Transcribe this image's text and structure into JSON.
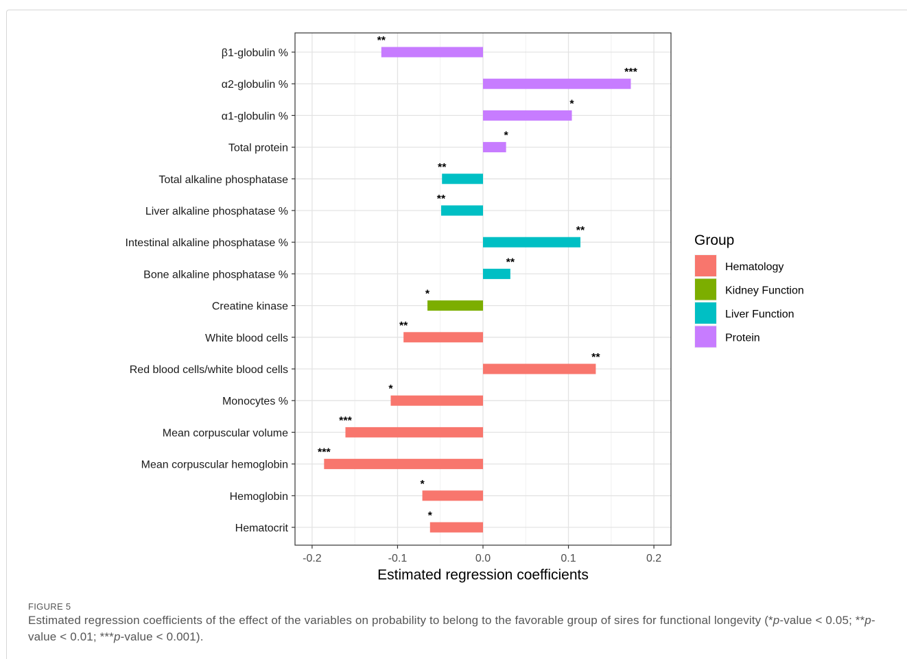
{
  "figure": {
    "label": "FIGURE 5",
    "caption_parts": [
      "Estimated regression coefficients of the effect of the variables on probability to belong to the favorable group of sires for functional longevity (*",
      "p",
      "-value < 0.05; **",
      "p",
      "-value < 0.01; ***",
      "p",
      "-value < 0.001)."
    ]
  },
  "chart_data": {
    "type": "bar",
    "orientation": "horizontal",
    "xlabel": "Estimated regression coefficients",
    "ylabel": "",
    "xlim": [
      -0.22,
      0.22
    ],
    "x_ticks": [
      -0.2,
      -0.1,
      0.0,
      0.1,
      0.2
    ],
    "x_tick_labels": [
      "-0.2",
      "-0.1",
      "0.0",
      "0.1",
      "0.2"
    ],
    "grid": true,
    "legend": {
      "title": "Group",
      "position": "right",
      "entries": [
        {
          "name": "Hematology",
          "color": "#F8766D"
        },
        {
          "name": "Kidney Function",
          "color": "#7CAE00"
        },
        {
          "name": "Liver Function",
          "color": "#00BFC4"
        },
        {
          "name": "Protein",
          "color": "#C77CFF"
        }
      ]
    },
    "categories": [
      "β1-globulin %",
      "α2-globulin %",
      "α1-globulin %",
      "Total protein",
      "Total alkaline phosphatase",
      "Liver alkaline phosphatase %",
      "Intestinal alkaline phosphatase %",
      "Bone alkaline phosphatase %",
      "Creatine kinase",
      "White blood cells",
      "Red blood cells/white blood cells",
      "Monocytes %",
      "Mean corpuscular volume",
      "Mean corpuscular hemoglobin",
      "Hemoglobin",
      "Hematocrit"
    ],
    "values": [
      -0.119,
      0.173,
      0.104,
      0.027,
      -0.048,
      -0.049,
      0.114,
      0.032,
      -0.065,
      -0.093,
      0.132,
      -0.108,
      -0.161,
      -0.186,
      -0.071,
      -0.062
    ],
    "groups": [
      "Protein",
      "Protein",
      "Protein",
      "Protein",
      "Liver Function",
      "Liver Function",
      "Liver Function",
      "Liver Function",
      "Kidney Function",
      "Hematology",
      "Hematology",
      "Hematology",
      "Hematology",
      "Hematology",
      "Hematology",
      "Hematology"
    ],
    "significance": [
      "**",
      "***",
      "*",
      "*",
      "**",
      "**",
      "**",
      "**",
      "*",
      "**",
      "**",
      "*",
      "***",
      "***",
      "*",
      "*"
    ]
  }
}
